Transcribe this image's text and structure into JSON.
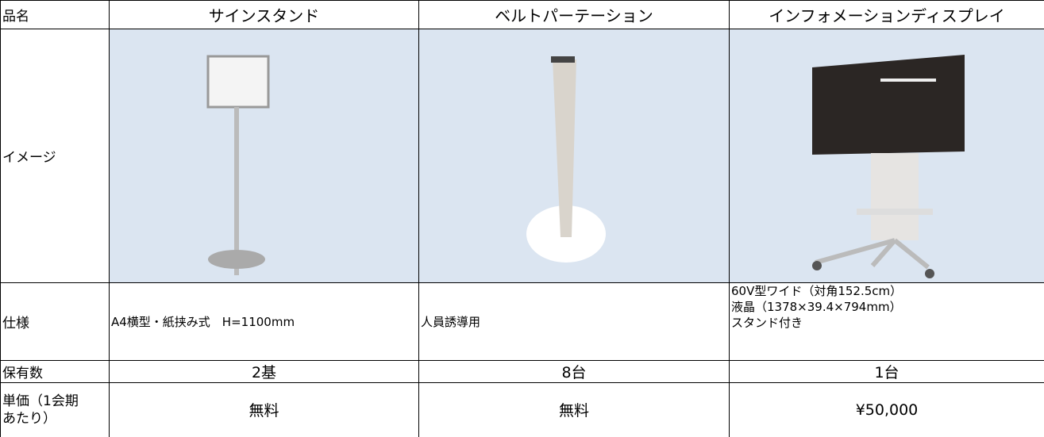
{
  "table": {
    "header": [
      "品名",
      "サインスタンド",
      "ベルトパーテーション",
      "インフォメーションディスプレイ"
    ],
    "image_row": {
      "label": "イメージ"
    },
    "spec_row": {
      "label": "仕様",
      "cells": [
        [
          "A4横型・紙挟み式　H=1100mm"
        ],
        [
          "人員誘導用"
        ],
        [
          "60V型ワイド（対角152.5cm）",
          "液晶（1378×39.4×794mm）",
          "スタンド付き"
        ]
      ]
    },
    "count_row": {
      "label": "保有数",
      "cells": [
        "2基",
        "8台",
        "1台"
      ]
    },
    "price_row": {
      "label": [
        "単価（1会期",
        "あたり）"
      ],
      "cells": [
        "無料",
        "無料",
        "¥50,000"
      ]
    }
  }
}
